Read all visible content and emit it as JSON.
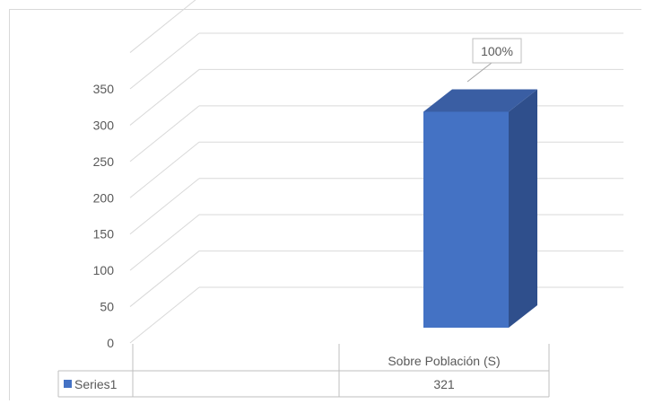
{
  "chart_data": {
    "type": "bar",
    "categories": [
      "Sobre Población (S)"
    ],
    "series": [
      {
        "name": "Series1",
        "values": [
          321
        ],
        "color": "#4472c4"
      }
    ],
    "ylim": [
      0,
      350
    ],
    "yticks": [
      0,
      50,
      100,
      150,
      200,
      250,
      300,
      350
    ],
    "data_labels": [
      "100%"
    ],
    "grid": true,
    "legend": "data-table",
    "title": "",
    "xlabel": "",
    "ylabel": ""
  }
}
